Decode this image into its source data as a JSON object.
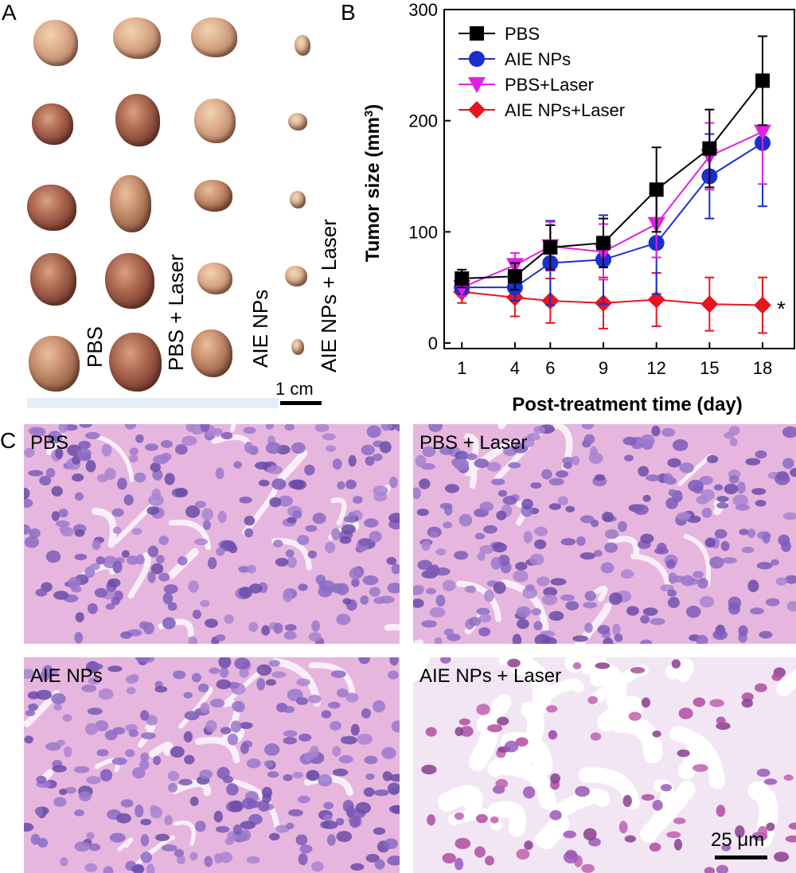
{
  "panel_letters": {
    "a": "A",
    "b": "B",
    "c": "C"
  },
  "panelA": {
    "group_labels": {
      "pbs": "PBS",
      "pbs_laser": "PBS + Laser",
      "aie": "AIE NPs",
      "aie_laser": "AIE NPs + Laser"
    },
    "scale_bar": "1 cm"
  },
  "panelC": {
    "labels": [
      "PBS",
      "PBS + Laser",
      "AIE NPs",
      "AIE NPs + Laser"
    ],
    "scale_bar": "25 μm"
  },
  "chart_data": {
    "type": "line",
    "xlabel": "Post-treatment time (day)",
    "ylabel": "Tumor size (mm",
    "ylabel_sup": "3",
    "ylabel_close": ")",
    "x": [
      1,
      4,
      6,
      9,
      12,
      15,
      18
    ],
    "ylim": [
      -5,
      300
    ],
    "yticks": [
      0,
      100,
      200,
      300
    ],
    "legend_position": "top-left",
    "annotation": "*",
    "series": [
      {
        "name": "PBS",
        "color": "#000000",
        "marker": "square",
        "values": [
          58,
          60,
          86,
          90,
          138,
          175,
          236
        ],
        "errors": [
          8,
          12,
          20,
          22,
          38,
          35,
          40
        ]
      },
      {
        "name": "AIE NPs",
        "color": "#1a2fcc",
        "marker": "circle",
        "values": [
          50,
          50,
          72,
          75,
          90,
          150,
          180
        ],
        "errors": [
          6,
          12,
          38,
          40,
          46,
          38,
          57
        ]
      },
      {
        "name": "PBS+Laser",
        "color": "#e020e0",
        "marker": "triangle-down",
        "values": [
          50,
          70,
          87,
          82,
          107,
          168,
          190
        ],
        "errors": [
          8,
          11,
          22,
          25,
          30,
          30,
          47
        ]
      },
      {
        "name": "AIE NPs+Laser",
        "color": "#e8141e",
        "marker": "diamond",
        "values": [
          46,
          41,
          38,
          36,
          39,
          35,
          34
        ],
        "errors": [
          10,
          17,
          20,
          23,
          24,
          24,
          25
        ]
      }
    ]
  }
}
